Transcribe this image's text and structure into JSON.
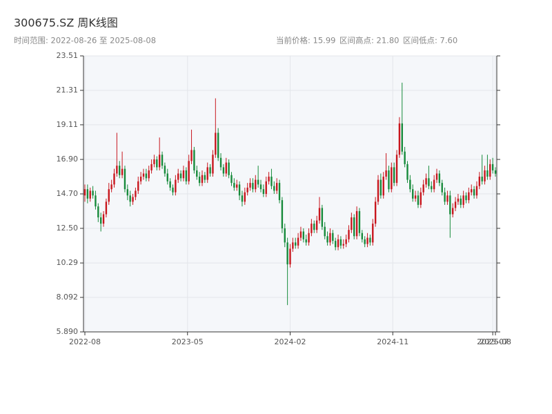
{
  "chart_data": {
    "type": "candlestick",
    "title": "300675.SZ 周K线图",
    "subtitle": "时间范围: 2022-08-26 至 2025-08-08",
    "stats": [
      "当前价格: 15.99",
      "区间高点: 21.80",
      "区间低点: 7.60"
    ],
    "up_color": "#c8161d",
    "down_color": "#168a3a",
    "grid": true,
    "xlim": [
      0,
      154
    ],
    "xticks": [
      {
        "value": 0,
        "label": "2022-08"
      },
      {
        "value": 38.5,
        "label": "2023-05"
      },
      {
        "value": 77,
        "label": "2024-02"
      },
      {
        "value": 115.5,
        "label": "2024-11"
      },
      {
        "value": 153,
        "label": "2025-07"
      },
      {
        "value": 154,
        "label": "2025-08"
      }
    ],
    "ylim": [
      5.89,
      23.51
    ],
    "yticks": [
      {
        "value": 5.89,
        "label": "5.890"
      },
      8.092,
      10.29,
      {
        "value": 12.5,
        "label": "12.50"
      },
      {
        "value": 14.7,
        "label": "14.70"
      },
      {
        "value": 16.9,
        "label": "16.90"
      },
      19.11,
      21.31,
      23.51
    ],
    "open": [
      14.6,
      15.0,
      14.4,
      14.9,
      14.6,
      13.9,
      13.2,
      12.8,
      13.4,
      14.2,
      15.0,
      15.3,
      16.0,
      16.5,
      15.9,
      16.3,
      15.0,
      14.6,
      14.2,
      14.5,
      14.9,
      15.5,
      15.8,
      16.0,
      15.7,
      16.2,
      16.6,
      16.9,
      16.4,
      17.2,
      16.5,
      16.0,
      15.5,
      15.1,
      14.8,
      15.6,
      16.0,
      15.7,
      16.2,
      15.5,
      16.8,
      17.5,
      16.2,
      15.8,
      15.4,
      15.9,
      15.6,
      16.4,
      16.0,
      17.2,
      18.6,
      17.0,
      16.4,
      16.0,
      16.7,
      15.9,
      15.4,
      15.1,
      15.3,
      14.6,
      14.2,
      14.8,
      15.1,
      15.4,
      15.0,
      15.6,
      15.3,
      15.0,
      14.7,
      15.5,
      15.8,
      15.2,
      14.9,
      15.4,
      14.3,
      12.5,
      11.6,
      10.2,
      11.2,
      11.6,
      11.4,
      11.9,
      12.3,
      11.8,
      11.6,
      12.2,
      12.8,
      12.4,
      13.0,
      13.8,
      12.6,
      12.0,
      11.6,
      12.2,
      11.7,
      11.3,
      11.8,
      11.4,
      11.5,
      11.8,
      12.4,
      13.2,
      12.0,
      13.6,
      12.2,
      11.8,
      11.5,
      11.9,
      11.6,
      12.8,
      14.2,
      15.6,
      14.6,
      15.8,
      16.2,
      15.0,
      16.4,
      15.4,
      17.2,
      19.2,
      17.4,
      16.6,
      15.6,
      15.0,
      14.4,
      14.6,
      14.0,
      14.8,
      15.3,
      15.7,
      15.2,
      15.0,
      15.6,
      16.0,
      15.4,
      14.8,
      14.2,
      14.6,
      13.4,
      13.8,
      14.2,
      14.4,
      14.0,
      14.6,
      14.3,
      14.8,
      15.0,
      14.6,
      15.2,
      15.8,
      15.5,
      16.2,
      15.8,
      16.6,
      16.2
    ],
    "high": [
      15.3,
      15.3,
      15.1,
      15.2,
      14.9,
      14.1,
      13.5,
      13.6,
      14.4,
      15.4,
      15.6,
      16.3,
      18.6,
      16.8,
      17.4,
      16.5,
      15.3,
      14.9,
      14.7,
      15.1,
      15.8,
      16.1,
      16.3,
      16.3,
      16.5,
      16.9,
      17.2,
      17.1,
      18.3,
      17.4,
      16.7,
      16.3,
      15.7,
      15.3,
      15.9,
      16.3,
      16.2,
      16.5,
      16.4,
      17.2,
      18.8,
      17.7,
      16.5,
      16.1,
      16.2,
      16.1,
      16.7,
      16.6,
      17.5,
      20.8,
      18.9,
      17.3,
      16.6,
      17.0,
      16.9,
      16.1,
      15.7,
      15.6,
      15.5,
      14.9,
      15.1,
      15.4,
      15.7,
      15.7,
      15.9,
      16.5,
      15.6,
      15.3,
      15.8,
      16.1,
      16.3,
      15.5,
      15.7,
      15.6,
      14.5,
      12.8,
      11.9,
      11.5,
      11.9,
      11.9,
      12.2,
      12.6,
      12.5,
      12.1,
      12.5,
      13.1,
      13.0,
      13.3,
      14.5,
      14.0,
      12.9,
      12.3,
      12.5,
      12.4,
      11.9,
      12.1,
      12.0,
      11.8,
      12.1,
      12.7,
      13.5,
      13.4,
      13.9,
      13.8,
      12.4,
      12.0,
      12.2,
      12.1,
      13.1,
      14.5,
      15.9,
      16.0,
      16.1,
      17.3,
      16.5,
      16.7,
      16.7,
      17.5,
      19.6,
      21.8,
      17.7,
      16.8,
      15.9,
      15.3,
      14.9,
      14.9,
      15.1,
      15.6,
      16.0,
      16.5,
      15.5,
      15.9,
      16.3,
      16.2,
      15.6,
      15.1,
      14.9,
      14.9,
      14.1,
      14.5,
      14.7,
      14.6,
      14.9,
      14.8,
      15.1,
      15.3,
      15.2,
      15.5,
      16.1,
      17.2,
      16.5,
      17.2,
      16.9,
      17.0,
      16.4
    ],
    "low": [
      14.2,
      14.1,
      14.2,
      14.4,
      13.7,
      12.9,
      12.3,
      12.6,
      13.2,
      14.0,
      14.8,
      15.1,
      15.8,
      15.7,
      15.7,
      14.8,
      14.3,
      13.9,
      14.0,
      14.3,
      14.7,
      15.3,
      15.6,
      15.5,
      15.5,
      16.0,
      16.4,
      16.2,
      16.2,
      16.3,
      15.8,
      15.3,
      14.9,
      14.6,
      14.6,
      15.4,
      15.5,
      15.5,
      15.3,
      15.3,
      16.6,
      16.0,
      15.6,
      15.2,
      15.2,
      15.4,
      15.4,
      15.8,
      15.8,
      17.0,
      16.8,
      16.2,
      15.8,
      15.8,
      15.7,
      15.2,
      14.9,
      14.9,
      14.3,
      13.9,
      14.0,
      14.6,
      14.9,
      14.8,
      14.8,
      15.1,
      14.8,
      14.5,
      14.5,
      15.3,
      15.0,
      14.7,
      14.7,
      14.1,
      12.2,
      11.3,
      7.6,
      10.0,
      11.0,
      11.2,
      11.2,
      11.7,
      11.6,
      11.4,
      11.4,
      12.0,
      12.2,
      12.2,
      12.8,
      12.4,
      11.8,
      11.4,
      11.4,
      11.5,
      11.1,
      11.1,
      11.2,
      11.2,
      11.3,
      11.6,
      12.2,
      11.8,
      11.8,
      12.0,
      11.6,
      11.3,
      11.3,
      11.4,
      11.4,
      12.6,
      14.0,
      14.4,
      14.4,
      15.6,
      14.8,
      14.8,
      15.2,
      15.2,
      17.0,
      17.2,
      16.4,
      15.4,
      14.8,
      14.2,
      14.2,
      13.8,
      13.8,
      14.6,
      15.1,
      15.0,
      14.8,
      14.8,
      15.4,
      15.2,
      14.6,
      14.0,
      14.0,
      11.9,
      13.2,
      13.6,
      14.0,
      13.8,
      13.8,
      14.1,
      14.1,
      14.6,
      14.4,
      14.4,
      15.0,
      15.3,
      15.3,
      15.6,
      15.6,
      16.0,
      15.8
    ],
    "close": [
      15.0,
      14.4,
      14.9,
      14.6,
      13.9,
      13.2,
      12.8,
      13.4,
      14.2,
      15.0,
      15.3,
      16.0,
      16.5,
      15.9,
      16.3,
      15.0,
      14.6,
      14.2,
      14.5,
      14.9,
      15.5,
      15.8,
      16.0,
      15.7,
      16.2,
      16.6,
      16.9,
      16.4,
      17.2,
      16.5,
      16.0,
      15.5,
      15.1,
      14.8,
      15.6,
      16.0,
      15.7,
      16.2,
      15.5,
      16.8,
      17.5,
      16.2,
      15.8,
      15.4,
      15.9,
      15.6,
      16.4,
      16.0,
      17.2,
      18.6,
      17.0,
      16.4,
      16.0,
      16.7,
      15.9,
      15.4,
      15.1,
      15.3,
      14.6,
      14.2,
      14.8,
      15.1,
      15.4,
      15.0,
      15.6,
      15.3,
      15.0,
      14.7,
      15.5,
      15.8,
      15.2,
      14.9,
      15.4,
      14.3,
      12.5,
      11.6,
      10.2,
      11.2,
      11.6,
      11.4,
      11.9,
      12.3,
      11.8,
      11.6,
      12.2,
      12.8,
      12.4,
      13.0,
      13.8,
      12.6,
      12.0,
      11.6,
      12.2,
      11.7,
      11.3,
      11.8,
      11.4,
      11.5,
      11.8,
      12.4,
      13.2,
      12.0,
      13.6,
      12.2,
      11.8,
      11.5,
      11.9,
      11.6,
      12.8,
      14.2,
      15.6,
      14.6,
      15.8,
      16.2,
      15.0,
      16.4,
      15.4,
      17.2,
      19.2,
      17.4,
      16.6,
      15.6,
      15.0,
      14.4,
      14.6,
      14.0,
      14.8,
      15.3,
      15.7,
      15.2,
      15.0,
      15.6,
      16.0,
      15.4,
      14.8,
      14.2,
      14.6,
      13.4,
      13.8,
      14.2,
      14.4,
      14.0,
      14.6,
      14.3,
      14.8,
      15.0,
      14.6,
      15.2,
      15.8,
      15.5,
      16.2,
      15.8,
      16.6,
      16.2,
      15.99
    ]
  }
}
